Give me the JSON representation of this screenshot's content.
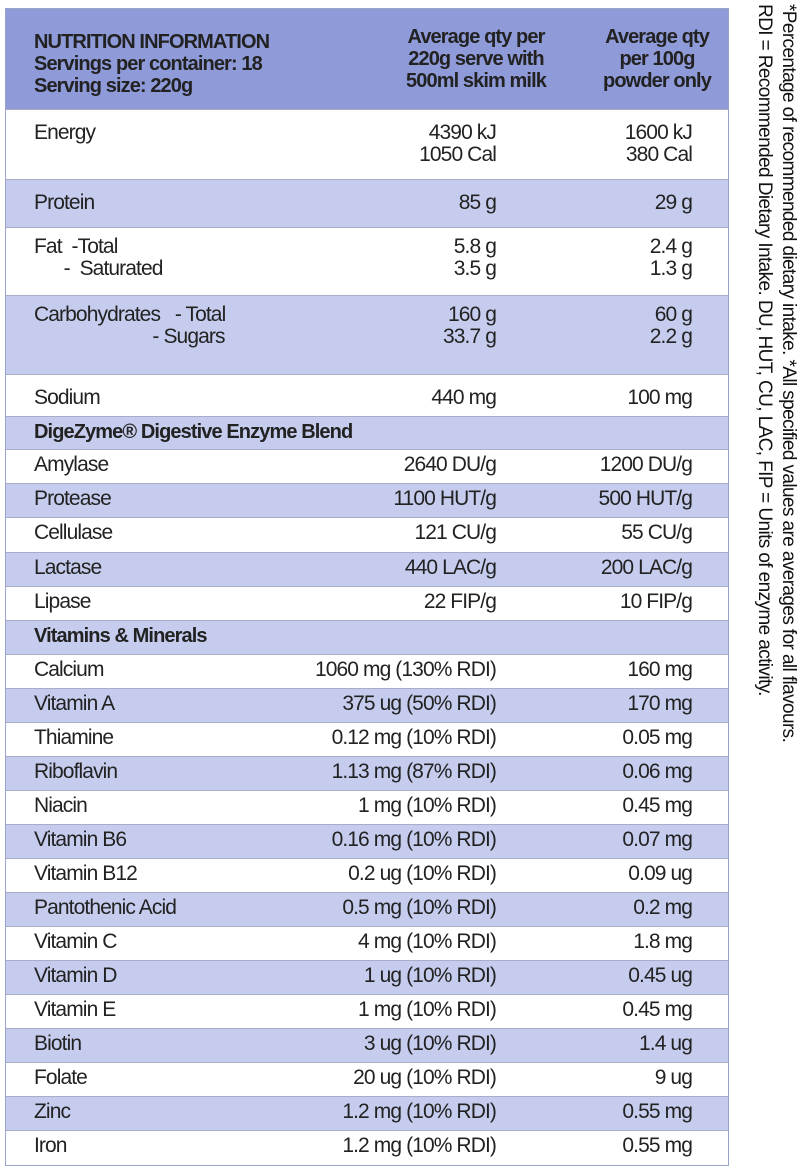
{
  "header": {
    "title": "NUTRITION INFORMATION",
    "servings": "Servings per container: 18",
    "serving_size": "Serving size: 220g",
    "col2": [
      "Average qty per",
      "220g serve with",
      "500ml skim milk"
    ],
    "col3": [
      "Average qty",
      "per 100g",
      "powder only"
    ]
  },
  "colors": {
    "header_bg": "#8f9bd9",
    "band_bg": "#c6cced"
  },
  "rows": [
    {
      "label": [
        "Energy"
      ],
      "serve": [
        "4390 kJ",
        "1050 Cal"
      ],
      "per100": [
        "1600 kJ",
        "380 Cal"
      ]
    },
    {
      "label": [
        "Protein"
      ],
      "serve": [
        "85 g"
      ],
      "per100": [
        "29 g"
      ]
    },
    {
      "label": [
        "Fat  -Total",
        "      -  Saturated"
      ],
      "serve": [
        "5.8 g",
        "3.5 g"
      ],
      "per100": [
        "2.4 g",
        "1.3 g"
      ]
    },
    {
      "label": [
        "Carbohydrates   - Total",
        "                        - Sugars"
      ],
      "serve": [
        "160 g",
        "33.7 g"
      ],
      "per100": [
        "60 g",
        "2.2 g"
      ]
    },
    {
      "label": [
        "Sodium"
      ],
      "serve": [
        "440 mg"
      ],
      "per100": [
        "100 mg"
      ]
    }
  ],
  "enzyme_section": "DigeZyme® Digestive Enzyme Blend",
  "enzymes": [
    {
      "label": "Amylase",
      "serve": "2640 DU/g",
      "per100": "1200 DU/g"
    },
    {
      "label": "Protease",
      "serve": "1100 HUT/g",
      "per100": "500 HUT/g"
    },
    {
      "label": "Cellulase",
      "serve": "121 CU/g",
      "per100": "55 CU/g"
    },
    {
      "label": "Lactase",
      "serve": "440 LAC/g",
      "per100": "200 LAC/g"
    },
    {
      "label": "Lipase",
      "serve": "22 FIP/g",
      "per100": "10 FIP/g"
    }
  ],
  "vitamin_section": "Vitamins & Minerals",
  "vitamins": [
    {
      "label": "Calcium",
      "serve": "1060 mg (130% RDI)",
      "per100": "160 mg"
    },
    {
      "label": "Vitamin A",
      "serve": "375 ug (50% RDI)",
      "per100": "170 mg"
    },
    {
      "label": "Thiamine",
      "serve": "0.12 mg (10% RDI)",
      "per100": "0.05 mg"
    },
    {
      "label": "Riboflavin",
      "serve": "1.13 mg (87% RDI)",
      "per100": "0.06 mg"
    },
    {
      "label": "Niacin",
      "serve": "1 mg (10% RDI)",
      "per100": "0.45 mg"
    },
    {
      "label": "Vitamin B6",
      "serve": "0.16 mg (10% RDI)",
      "per100": "0.07 mg"
    },
    {
      "label": "Vitamin B12",
      "serve": "0.2 ug (10% RDI)",
      "per100": "0.09 ug"
    },
    {
      "label": "Pantothenic Acid",
      "serve": "0.5 mg (10% RDI)",
      "per100": "0.2 mg"
    },
    {
      "label": "Vitamin C",
      "serve": "4 mg (10% RDI)",
      "per100": "1.8 mg"
    },
    {
      "label": "Vitamin D",
      "serve": "1 ug (10% RDI)",
      "per100": "0.45 ug"
    },
    {
      "label": "Vitamin E",
      "serve": "1 mg (10% RDI)",
      "per100": "0.45 mg"
    },
    {
      "label": "Biotin",
      "serve": "3 ug (10% RDI)",
      "per100": "1.4 ug"
    },
    {
      "label": "Folate",
      "serve": "20 ug (10% RDI)",
      "per100": "9 ug"
    },
    {
      "label": "Zinc",
      "serve": "1.2 mg (10% RDI)",
      "per100": "0.55 mg"
    },
    {
      "label": "Iron",
      "serve": "1.2 mg (10% RDI)",
      "per100": "0.55 mg"
    }
  ],
  "footnotes": [
    "*Percentage of recommended dietary intake.  *All specified values are averages for all flavours.",
    "RDI = Recommended Dietary Intake.  DU, HUT, CU, LAC, FIP = Units of enzyme activity."
  ]
}
